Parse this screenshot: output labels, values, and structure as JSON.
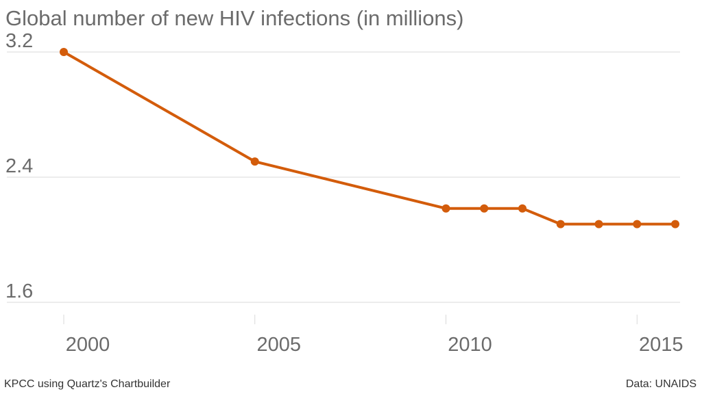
{
  "chart_title": "Global number of new HIV infections (in millions)",
  "footer": {
    "credit": "KPCC using Quartz's Chartbuilder",
    "source": "Data: UNAIDS"
  },
  "colors": {
    "line": "#d35c0b",
    "grid": "#d9d9d9",
    "tick_label": "#6b6b6b"
  },
  "chart_data": {
    "type": "line",
    "title": "Global number of new HIV infections (in millions)",
    "xlabel": "",
    "ylabel": "",
    "xlim": [
      2000,
      2016
    ],
    "ylim": [
      1.6,
      3.2
    ],
    "y_ticks": [
      3.2,
      2.4,
      1.6
    ],
    "y_tick_labels": [
      "3.2",
      "2.4",
      "1.6"
    ],
    "x_ticks": [
      2000,
      2005,
      2010,
      2015
    ],
    "x_tick_labels": [
      "2000",
      "2005",
      "2010",
      "2015"
    ],
    "grid": true,
    "legend": "none",
    "series": [
      {
        "x": [
          2000,
          2005,
          2010,
          2011,
          2012,
          2013,
          2014,
          2015,
          2016
        ],
        "values": [
          3.2,
          2.5,
          2.2,
          2.2,
          2.2,
          2.1,
          2.1,
          2.1,
          2.1
        ]
      }
    ]
  }
}
